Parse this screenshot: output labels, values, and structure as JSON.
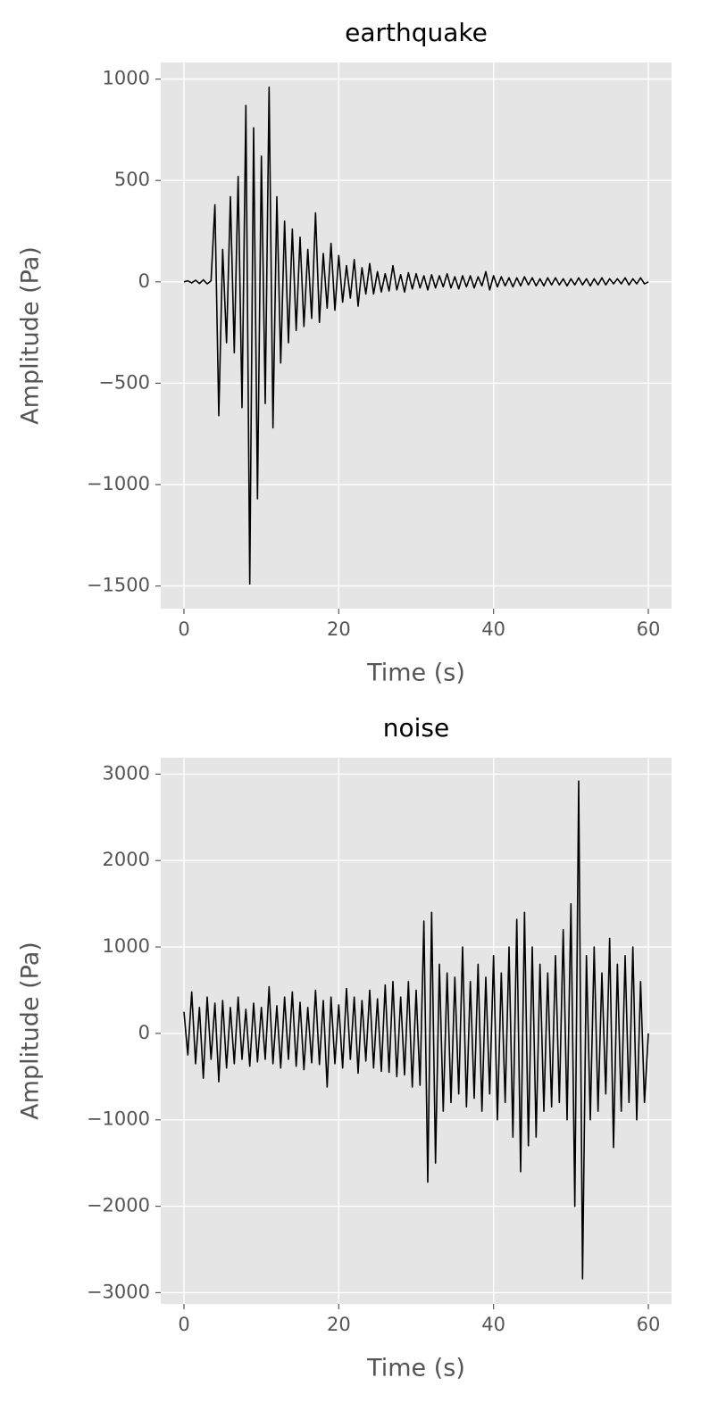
{
  "chart_data": [
    {
      "type": "line",
      "title": "earthquake",
      "xlabel": "Time (s)",
      "ylabel": "Amplitude (Pa)",
      "xlim": [
        -3,
        63
      ],
      "xticks": [
        0,
        20,
        40,
        60
      ],
      "ylim": [
        -1612,
        1082
      ],
      "yticks": [
        {
          "value": -1500,
          "label": "−1500"
        },
        {
          "value": -1000,
          "label": "−1000"
        },
        {
          "value": -500,
          "label": "−500"
        },
        0,
        500,
        1000
      ],
      "grid": true,
      "x": [
        0,
        0.5,
        1,
        1.5,
        2,
        2.5,
        3,
        3.5,
        4,
        4.5,
        5,
        5.5,
        6,
        6.5,
        7,
        7.5,
        8,
        8.5,
        9,
        9.5,
        10,
        10.5,
        11,
        11.5,
        12,
        12.5,
        13,
        13.5,
        14,
        14.5,
        15,
        15.5,
        16,
        16.5,
        17,
        17.5,
        18,
        18.5,
        19,
        19.5,
        20,
        20.5,
        21,
        21.5,
        22,
        22.5,
        23,
        23.5,
        24,
        24.5,
        25,
        25.5,
        26,
        26.5,
        27,
        27.5,
        28,
        28.5,
        29,
        29.5,
        30,
        30.5,
        31,
        31.5,
        32,
        32.5,
        33,
        33.5,
        34,
        34.5,
        35,
        35.5,
        36,
        36.5,
        37,
        37.5,
        38,
        38.5,
        39,
        39.5,
        40,
        40.5,
        41,
        41.5,
        42,
        42.5,
        43,
        43.5,
        44,
        44.5,
        45,
        45.5,
        46,
        46.5,
        47,
        47.5,
        48,
        48.5,
        49,
        49.5,
        50,
        50.5,
        51,
        51.5,
        52,
        52.5,
        53,
        53.5,
        54,
        54.5,
        55,
        55.5,
        56,
        56.5,
        57,
        57.5,
        58,
        58.5,
        59,
        59.5,
        60
      ],
      "series": [
        {
          "color": "#000000",
          "values": [
            0,
            5,
            -5,
            8,
            -8,
            10,
            -10,
            5,
            380,
            -660,
            160,
            -300,
            420,
            -350,
            520,
            -620,
            870,
            -1490,
            760,
            -1070,
            620,
            -600,
            960,
            -720,
            420,
            -400,
            300,
            -300,
            260,
            -240,
            220,
            -220,
            160,
            -180,
            340,
            -200,
            140,
            -130,
            190,
            -140,
            130,
            -100,
            80,
            -80,
            110,
            -120,
            70,
            -60,
            90,
            -60,
            50,
            -50,
            40,
            -45,
            80,
            -40,
            35,
            -50,
            45,
            -35,
            40,
            -30,
            30,
            -40,
            35,
            -30,
            30,
            -25,
            40,
            -30,
            25,
            -35,
            30,
            -25,
            30,
            -30,
            25,
            -20,
            50,
            -40,
            30,
            -25,
            25,
            -20,
            20,
            -25,
            20,
            -20,
            25,
            -15,
            20,
            -20,
            15,
            -20,
            20,
            -15,
            20,
            -15,
            15,
            -20,
            15,
            -15,
            20,
            -15,
            15,
            -20,
            15,
            -15,
            20,
            -15,
            15,
            -10,
            15,
            -10,
            20,
            -15,
            15,
            -10,
            20,
            -10,
            0
          ]
        }
      ]
    },
    {
      "type": "line",
      "title": "noise",
      "xlabel": "Time (s)",
      "ylabel": "Amplitude (Pa)",
      "xlim": [
        -3,
        63
      ],
      "xticks": [
        0,
        20,
        40,
        60
      ],
      "ylim": [
        -3130,
        3190
      ],
      "yticks": [
        {
          "value": -3000,
          "label": "−3000"
        },
        {
          "value": -2000,
          "label": "−2000"
        },
        {
          "value": -1000,
          "label": "−1000"
        },
        0,
        1000,
        2000,
        3000
      ],
      "grid": true,
      "x": [
        0,
        0.5,
        1,
        1.5,
        2,
        2.5,
        3,
        3.5,
        4,
        4.5,
        5,
        5.5,
        6,
        6.5,
        7,
        7.5,
        8,
        8.5,
        9,
        9.5,
        10,
        10.5,
        11,
        11.5,
        12,
        12.5,
        13,
        13.5,
        14,
        14.5,
        15,
        15.5,
        16,
        16.5,
        17,
        17.5,
        18,
        18.5,
        19,
        19.5,
        20,
        20.5,
        21,
        21.5,
        22,
        22.5,
        23,
        23.5,
        24,
        24.5,
        25,
        25.5,
        26,
        26.5,
        27,
        27.5,
        28,
        28.5,
        29,
        29.5,
        30,
        30.5,
        31,
        31.5,
        32,
        32.5,
        33,
        33.5,
        34,
        34.5,
        35,
        35.5,
        36,
        36.5,
        37,
        37.5,
        38,
        38.5,
        39,
        39.5,
        40,
        40.5,
        41,
        41.5,
        42,
        42.5,
        43,
        43.5,
        44,
        44.5,
        45,
        45.5,
        46,
        46.5,
        47,
        47.5,
        48,
        48.5,
        49,
        49.5,
        50,
        50.5,
        51,
        51.5,
        52,
        52.5,
        53,
        53.5,
        54,
        54.5,
        55,
        55.5,
        56,
        56.5,
        57,
        57.5,
        58,
        58.5,
        59,
        59.5,
        60
      ],
      "series": [
        {
          "color": "#000000",
          "values": [
            250,
            -250,
            480,
            -350,
            300,
            -520,
            420,
            -300,
            350,
            -560,
            380,
            -400,
            300,
            -350,
            420,
            -300,
            280,
            -380,
            350,
            -330,
            300,
            -300,
            540,
            -350,
            320,
            -400,
            420,
            -300,
            480,
            -380,
            360,
            -420,
            300,
            -340,
            500,
            -360,
            380,
            -620,
            420,
            -350,
            330,
            -400,
            520,
            -300,
            420,
            -460,
            380,
            -320,
            500,
            -400,
            400,
            -440,
            560,
            -450,
            600,
            -500,
            420,
            -480,
            600,
            -620,
            500,
            -600,
            1300,
            -1720,
            1400,
            -1500,
            800,
            -900,
            700,
            -800,
            650,
            -700,
            1000,
            -850,
            600,
            -750,
            800,
            -900,
            650,
            -700,
            900,
            -1000,
            700,
            -800,
            1000,
            -1200,
            1320,
            -1600,
            1400,
            -1300,
            1000,
            -1200,
            800,
            -900,
            700,
            -850,
            900,
            -800,
            1200,
            -1000,
            1500,
            -2000,
            2920,
            -2840,
            900,
            -1000,
            1000,
            -900,
            700,
            -700,
            1100,
            -1320,
            800,
            -900,
            900,
            -800,
            1000,
            -1000,
            600,
            -800,
            0
          ]
        }
      ]
    }
  ]
}
